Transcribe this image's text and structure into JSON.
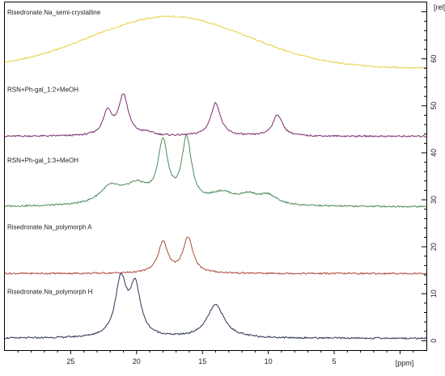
{
  "chart_data": {
    "type": "line",
    "title": "",
    "xlabel": "[ppm]",
    "ylabel": "[rel]",
    "x_reversed": true,
    "xlim": [
      30,
      -2
    ],
    "ylim": [
      -2,
      72
    ],
    "x_ticks": [
      25,
      20,
      15,
      10,
      5
    ],
    "y_ticks": [
      0,
      10,
      20,
      30,
      40,
      50,
      60
    ],
    "grid": false,
    "series": [
      {
        "name": "Risedronate.Na_semi-crystalline",
        "color": "#e8d24a",
        "baseline": 58,
        "peaks": [
          {
            "ppm": 17.5,
            "height": 11,
            "width": 6.0
          }
        ]
      },
      {
        "name": "RSN+Ph-gal_1:2+MeOH",
        "color": "#7b2d6f",
        "baseline": 43.5,
        "peaks": [
          {
            "ppm": 22.2,
            "height": 5.0,
            "width": 0.4
          },
          {
            "ppm": 21.0,
            "height": 8.5,
            "width": 0.45
          },
          {
            "ppm": 19.2,
            "height": 0.6,
            "width": 0.5
          },
          {
            "ppm": 14.0,
            "height": 7.0,
            "width": 0.45
          },
          {
            "ppm": 9.3,
            "height": 4.5,
            "width": 0.45
          }
        ]
      },
      {
        "name": "RSN+Ph-gal_1:3+MeOH",
        "color": "#4e8a5a",
        "baseline": 28.5,
        "peaks": [
          {
            "ppm": 22.0,
            "height": 3.5,
            "width": 1.0
          },
          {
            "ppm": 20.0,
            "height": 4.0,
            "width": 1.2
          },
          {
            "ppm": 18.0,
            "height": 12.5,
            "width": 0.45
          },
          {
            "ppm": 16.2,
            "height": 13.5,
            "width": 0.45
          },
          {
            "ppm": 13.5,
            "height": 2.5,
            "width": 1.2
          },
          {
            "ppm": 11.5,
            "height": 1.8,
            "width": 0.8
          },
          {
            "ppm": 10.0,
            "height": 2.0,
            "width": 0.8
          }
        ]
      },
      {
        "name": "Risedronate.Na_polymorph A",
        "color": "#b0473c",
        "baseline": 14.3,
        "peaks": [
          {
            "ppm": 18.0,
            "height": 6.5,
            "width": 0.45
          },
          {
            "ppm": 16.1,
            "height": 7.5,
            "width": 0.45
          }
        ]
      },
      {
        "name": "Risedronate.Na_polymorph H",
        "color": "#2b3557",
        "baseline": 0.5,
        "peaks": [
          {
            "ppm": 21.2,
            "height": 12.0,
            "width": 0.5
          },
          {
            "ppm": 20.1,
            "height": 10.5,
            "width": 0.5
          },
          {
            "ppm": 14.0,
            "height": 7.0,
            "width": 0.8
          }
        ]
      }
    ]
  }
}
